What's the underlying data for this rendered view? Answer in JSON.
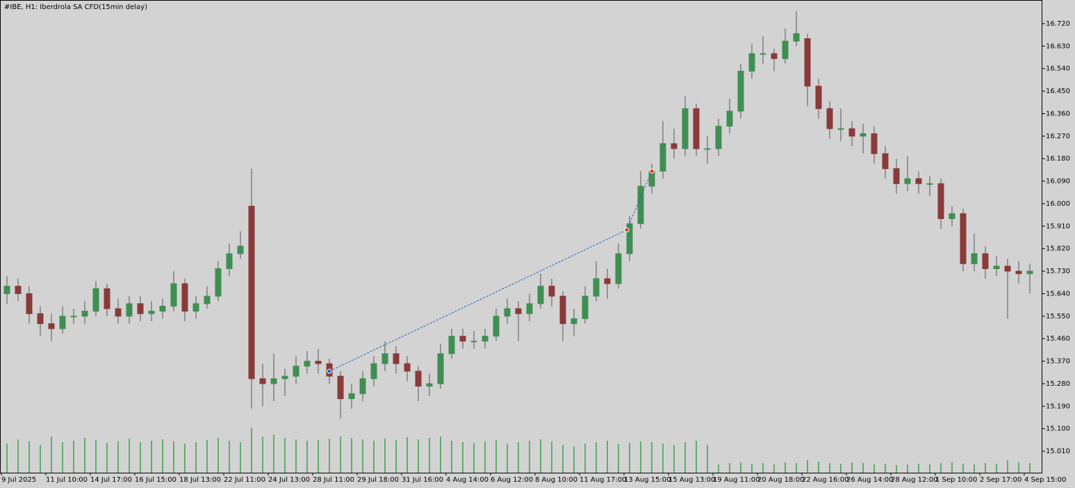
{
  "chart_data": {
    "type": "candlestick",
    "title": "#IBE, H1:  Iberdrola SA CFD(15min delay)",
    "categories": [
      "9 Jul 2025",
      null,
      null,
      null,
      "11 Jul 10:00",
      null,
      null,
      null,
      "14 Jul 17:00",
      null,
      null,
      null,
      "16 Jul 15:00",
      null,
      null,
      null,
      "18 Jul 13:00",
      null,
      null,
      null,
      "22 Jul 11:00",
      null,
      null,
      null,
      "24 Jul 13:00",
      null,
      null,
      null,
      "28 Jul 11:00",
      null,
      null,
      null,
      "29 Jul 18:00",
      null,
      null,
      null,
      "31 Jul 16:00",
      null,
      null,
      null,
      "4 Aug 14:00",
      null,
      null,
      null,
      "6 Aug 12:00",
      null,
      null,
      null,
      "8 Aug 10:00",
      null,
      null,
      null,
      "11 Aug 17:00",
      null,
      null,
      null,
      "13 Aug 15:00",
      null,
      null,
      null,
      "15 Aug 13:00",
      null,
      null,
      null,
      "19 Aug 11:00",
      null,
      null,
      null,
      "20 Aug 18:00",
      null,
      null,
      null,
      "22 Aug 16:00",
      null,
      null,
      null,
      "26 Aug 14:00",
      null,
      null,
      null,
      "28 Aug 12:00",
      null,
      null,
      null,
      "1 Sep 10:00",
      null,
      null,
      null,
      "2 Sep 17:00",
      null,
      null,
      null,
      "4 Sep 15:00"
    ],
    "open": [
      15.64,
      15.67,
      15.64,
      15.56,
      15.52,
      15.5,
      15.55,
      15.55,
      15.57,
      15.66,
      15.58,
      15.55,
      15.6,
      15.56,
      15.57,
      15.59,
      15.68,
      15.57,
      15.6,
      15.63,
      15.74,
      15.8,
      15.99,
      15.3,
      15.28,
      15.3,
      15.31,
      15.35,
      15.37,
      15.36,
      15.31,
      15.22,
      15.24,
      15.3,
      15.36,
      15.4,
      15.36,
      15.33,
      15.27,
      15.28,
      15.4,
      15.47,
      15.45,
      15.45,
      15.47,
      15.55,
      15.58,
      15.56,
      15.6,
      15.67,
      15.63,
      15.52,
      15.54,
      15.63,
      15.7,
      15.68,
      15.8,
      15.92,
      16.07,
      16.13,
      16.24,
      16.22,
      16.38,
      16.22,
      16.22,
      16.31,
      16.37,
      16.53,
      16.6,
      16.6,
      16.58,
      16.65,
      16.66,
      16.47,
      16.38,
      16.3,
      16.3,
      16.27,
      16.28,
      16.2,
      16.14,
      16.08,
      16.1,
      16.08,
      16.08,
      15.94,
      15.96,
      15.76,
      15.8,
      15.74,
      15.75,
      15.73,
      15.72
    ],
    "high": [
      15.71,
      15.7,
      15.67,
      15.59,
      15.56,
      15.59,
      15.58,
      15.61,
      15.69,
      15.68,
      15.62,
      15.63,
      15.63,
      15.61,
      15.62,
      15.73,
      15.7,
      15.63,
      15.67,
      15.77,
      15.84,
      15.89,
      16.14,
      15.36,
      15.4,
      15.34,
      15.39,
      15.41,
      15.42,
      15.38,
      15.33,
      15.28,
      15.33,
      15.39,
      15.45,
      15.43,
      15.39,
      15.35,
      15.32,
      15.44,
      15.5,
      15.5,
      15.49,
      15.5,
      15.58,
      15.62,
      15.61,
      15.64,
      15.72,
      15.7,
      15.65,
      15.58,
      15.67,
      15.77,
      15.74,
      15.84,
      15.95,
      16.13,
      16.16,
      16.33,
      16.3,
      16.43,
      16.4,
      16.27,
      16.34,
      16.42,
      16.56,
      16.64,
      16.67,
      16.62,
      16.7,
      16.77,
      16.68,
      16.5,
      16.41,
      16.38,
      16.33,
      16.32,
      16.31,
      16.23,
      16.18,
      16.19,
      16.13,
      16.11,
      16.1,
      15.99,
      15.98,
      15.88,
      15.83,
      15.79,
      15.78,
      15.77,
      15.76
    ],
    "low": [
      15.6,
      15.61,
      15.52,
      15.47,
      15.45,
      15.48,
      15.52,
      15.52,
      15.55,
      15.55,
      15.52,
      15.52,
      15.53,
      15.53,
      15.54,
      15.57,
      15.53,
      15.54,
      15.58,
      15.61,
      15.71,
      15.78,
      15.18,
      15.19,
      15.21,
      15.23,
      15.28,
      15.32,
      15.32,
      15.28,
      15.14,
      15.18,
      15.21,
      15.27,
      15.33,
      15.32,
      15.29,
      15.21,
      15.23,
      15.26,
      15.38,
      15.42,
      15.42,
      15.42,
      15.45,
      15.52,
      15.45,
      15.53,
      15.58,
      15.59,
      15.45,
      15.47,
      15.52,
      15.61,
      15.62,
      15.66,
      15.77,
      15.9,
      16.04,
      16.1,
      16.18,
      16.19,
      16.19,
      16.16,
      16.19,
      16.28,
      16.34,
      16.5,
      16.56,
      16.53,
      16.56,
      16.63,
      16.39,
      16.34,
      16.26,
      16.25,
      16.23,
      16.2,
      16.16,
      16.1,
      16.04,
      16.05,
      16.04,
      16.03,
      15.9,
      15.91,
      15.73,
      15.73,
      15.7,
      15.71,
      15.54,
      15.68,
      15.64
    ],
    "close": [
      15.67,
      15.64,
      15.56,
      15.52,
      15.5,
      15.55,
      15.55,
      15.57,
      15.66,
      15.58,
      15.55,
      15.6,
      15.56,
      15.57,
      15.59,
      15.68,
      15.57,
      15.6,
      15.63,
      15.74,
      15.8,
      15.83,
      15.3,
      15.28,
      15.3,
      15.31,
      15.35,
      15.37,
      15.36,
      15.31,
      15.22,
      15.24,
      15.3,
      15.36,
      15.4,
      15.36,
      15.33,
      15.27,
      15.28,
      15.4,
      15.47,
      15.45,
      15.45,
      15.47,
      15.55,
      15.58,
      15.56,
      15.6,
      15.67,
      15.63,
      15.52,
      15.54,
      15.63,
      15.7,
      15.68,
      15.8,
      15.92,
      16.07,
      16.13,
      16.24,
      16.22,
      16.38,
      16.22,
      16.22,
      16.31,
      16.37,
      16.53,
      16.6,
      16.6,
      16.58,
      16.65,
      16.68,
      16.47,
      16.38,
      16.3,
      16.3,
      16.27,
      16.28,
      16.2,
      16.14,
      16.08,
      16.1,
      16.08,
      16.08,
      15.94,
      15.96,
      15.76,
      15.8,
      15.74,
      15.75,
      15.73,
      15.72,
      15.73
    ],
    "volume": [
      42,
      48,
      45,
      40,
      52,
      44,
      46,
      50,
      47,
      43,
      45,
      49,
      44,
      46,
      48,
      45,
      42,
      44,
      47,
      50,
      46,
      44,
      65,
      52,
      55,
      50,
      48,
      46,
      47,
      49,
      52,
      50,
      48,
      46,
      49,
      47,
      51,
      48,
      50,
      52,
      46,
      44,
      43,
      45,
      47,
      42,
      44,
      46,
      48,
      45,
      40,
      38,
      42,
      44,
      46,
      41,
      43,
      45,
      44,
      42,
      40,
      44,
      46,
      40,
      12,
      14,
      15,
      13,
      14,
      12,
      15,
      14,
      18,
      16,
      14,
      13,
      15,
      14,
      12,
      13,
      11,
      12,
      13,
      12,
      14,
      15,
      13,
      12,
      14,
      13,
      18,
      15,
      14
    ],
    "up_color": "#3f8f52",
    "down_color": "#8b3a3a",
    "wick_color": "#555555",
    "volume_color": "#5fad6a",
    "ylim": [
      14.924,
      16.8145
    ],
    "yticks": [
      {
        "value": 15.01,
        "label": "15.010"
      },
      {
        "value": 15.1,
        "label": "15.100"
      },
      {
        "value": 15.19,
        "label": "15.190"
      },
      {
        "value": 15.28,
        "label": "15.280"
      },
      {
        "value": 15.37,
        "label": "15.370"
      },
      {
        "value": 15.46,
        "label": "15.460"
      },
      {
        "value": 15.55,
        "label": "15.550"
      },
      {
        "value": 15.64,
        "label": "15.640"
      },
      {
        "value": 15.73,
        "label": "15.730"
      },
      {
        "value": 15.82,
        "label": "15.820"
      },
      {
        "value": 15.91,
        "label": "15.910"
      },
      {
        "value": 16.0,
        "label": "16.000"
      },
      {
        "value": 16.09,
        "label": "16.090"
      },
      {
        "value": 16.18,
        "label": "16.180"
      },
      {
        "value": 16.27,
        "label": "16.270"
      },
      {
        "value": 16.36,
        "label": "16.360"
      },
      {
        "value": 16.45,
        "label": "16.450"
      },
      {
        "value": 16.54,
        "label": "16.540"
      },
      {
        "value": 16.63,
        "label": "16.630"
      },
      {
        "value": 16.72,
        "label": "16.720"
      }
    ],
    "trades": {
      "x": [
        29,
        55.75,
        58
      ],
      "values": [
        15.33,
        15.895,
        16.13
      ],
      "colors": [
        "#1f5fbf",
        "#d43a1a",
        "#d43a1a"
      ],
      "line_color": "#1f5fbf"
    }
  }
}
